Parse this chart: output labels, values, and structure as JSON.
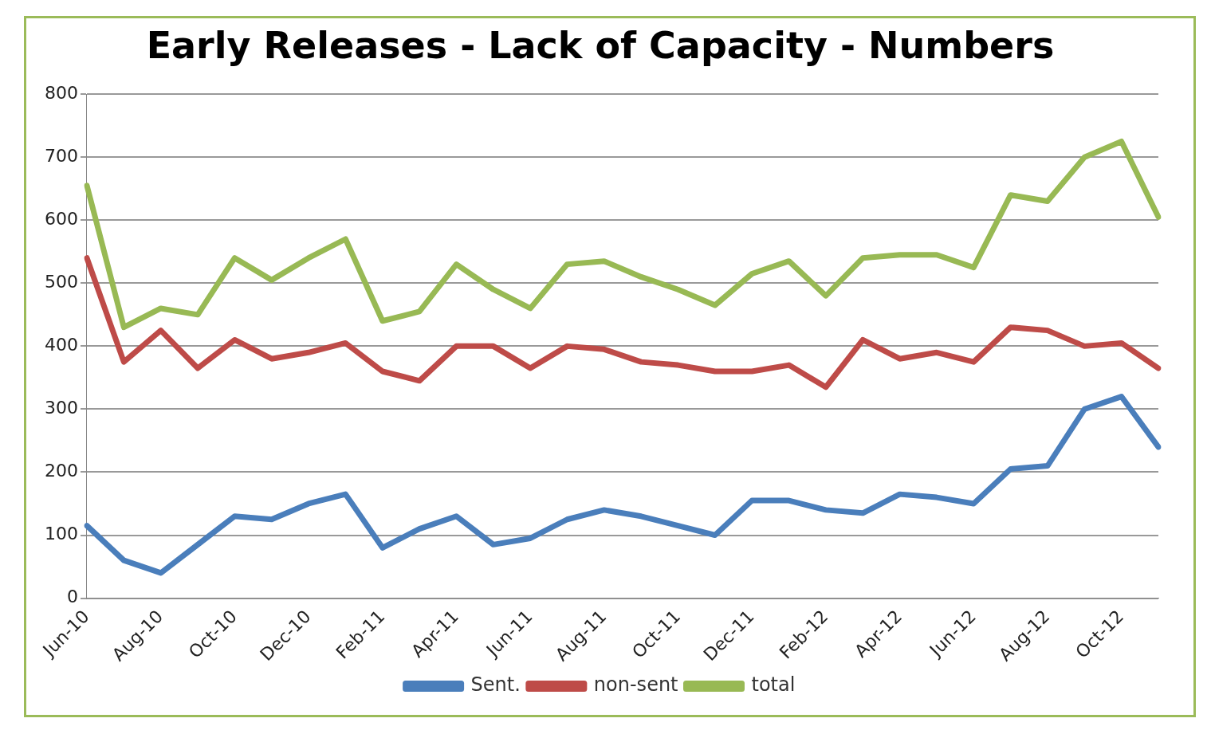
{
  "chart_data": {
    "type": "line",
    "title": "Early Releases - Lack of Capacity - Numbers",
    "categories": [
      "Jun-10",
      null,
      "Aug-10",
      null,
      "Oct-10",
      null,
      "Dec-10",
      null,
      "Feb-11",
      null,
      "Apr-11",
      null,
      "Jun-11",
      null,
      "Aug-11",
      null,
      "Oct-11",
      null,
      "Dec-11",
      null,
      "Feb-12",
      null,
      "Apr-12",
      null,
      "Jun-12",
      null,
      "Aug-12",
      null,
      "Oct-12",
      null
    ],
    "series": [
      {
        "name": "Sent.",
        "color": "#4a7ebb",
        "values": [
          115,
          60,
          40,
          85,
          130,
          125,
          150,
          165,
          80,
          110,
          130,
          85,
          95,
          125,
          140,
          130,
          115,
          100,
          155,
          155,
          140,
          135,
          165,
          160,
          150,
          205,
          210,
          300,
          320,
          240
        ]
      },
      {
        "name": "non-sent",
        "color": "#be4b48",
        "values": [
          540,
          375,
          425,
          365,
          410,
          380,
          390,
          405,
          360,
          345,
          400,
          400,
          365,
          400,
          395,
          375,
          370,
          360,
          360,
          370,
          335,
          410,
          380,
          390,
          375,
          430,
          425,
          400,
          405,
          365
        ]
      },
      {
        "name": "total",
        "color": "#98b954",
        "values": [
          655,
          430,
          460,
          450,
          540,
          505,
          540,
          570,
          440,
          455,
          530,
          490,
          460,
          530,
          535,
          510,
          490,
          465,
          515,
          535,
          480,
          540,
          545,
          545,
          525,
          640,
          630,
          700,
          725,
          605
        ]
      }
    ],
    "ylim": [
      0,
      800
    ],
    "yticks": [
      0,
      100,
      200,
      300,
      400,
      500,
      600,
      700,
      800
    ],
    "grid": "y",
    "legend": "bottom",
    "marker": "none",
    "line_style": "solid"
  }
}
